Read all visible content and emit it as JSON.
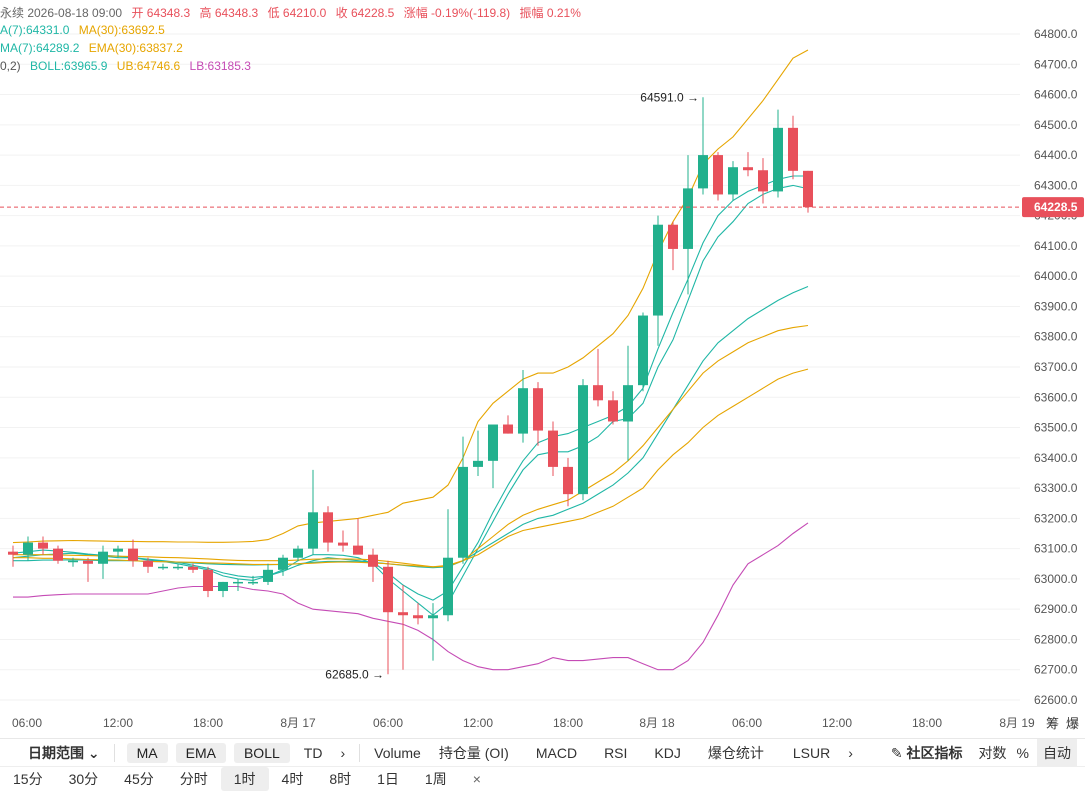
{
  "header": {
    "line1": [
      {
        "text": "永续 2026-08-18 09:00",
        "cls": "lg-title"
      },
      {
        "text": "开 64348.3",
        "cls": "up"
      },
      {
        "text": "高 64348.3",
        "cls": "up"
      },
      {
        "text": "低 64210.0",
        "cls": "up"
      },
      {
        "text": "收 64228.5",
        "cls": "up"
      },
      {
        "text": "涨幅 -0.19%(-119.8)",
        "cls": "up"
      },
      {
        "text": "振幅 0.21%",
        "cls": "up"
      }
    ],
    "line2": [
      {
        "text": "A(7):64331.0",
        "cls": "teal"
      },
      {
        "text": "MA(30):63692.5",
        "cls": "orange"
      }
    ],
    "line3": [
      {
        "text": "MA(7):64289.2",
        "cls": "teal"
      },
      {
        "text": "EMA(30):63837.2",
        "cls": "orange"
      }
    ],
    "line4": [
      {
        "text": "0,2)",
        "cls": "muted"
      },
      {
        "text": "BOLL:63965.9",
        "cls": "teal"
      },
      {
        "text": "UB:64746.6",
        "cls": "orange"
      },
      {
        "text": "LB:63185.3",
        "cls": "purple"
      }
    ]
  },
  "chart_data": {
    "type": "candlestick",
    "y_axis": {
      "min": 62600,
      "max": 64800,
      "ticks": [
        64800,
        64700,
        64600,
        64500,
        64400,
        64300,
        64200,
        64100,
        64000,
        63900,
        63800,
        63700,
        63600,
        63500,
        63400,
        63300,
        63200,
        63100,
        63000,
        62900,
        62800,
        62700,
        62600
      ],
      "position": "right"
    },
    "x_axis_labels": [
      "06:00",
      "12:00",
      "18:00",
      "8月 17",
      "06:00",
      "12:00",
      "18:00",
      "8月 18",
      "06:00",
      "12:00",
      "18:00",
      "8月 19"
    ],
    "last_price_label": "64228.5",
    "annotations": [
      {
        "text": "64591.0 →",
        "price": 64591.0,
        "type": "high"
      },
      {
        "text": "62685.0 →",
        "price": 62685.0,
        "type": "low"
      }
    ],
    "candles": [
      {
        "o": 63090,
        "h": 63110,
        "l": 63040,
        "c": 63080
      },
      {
        "o": 63080,
        "h": 63140,
        "l": 63060,
        "c": 63120
      },
      {
        "o": 63120,
        "h": 63140,
        "l": 63080,
        "c": 63100
      },
      {
        "o": 63100,
        "h": 63110,
        "l": 63050,
        "c": 63060
      },
      {
        "o": 63060,
        "h": 63070,
        "l": 63040,
        "c": 63060
      },
      {
        "o": 63060,
        "h": 63070,
        "l": 62990,
        "c": 63050
      },
      {
        "o": 63050,
        "h": 63110,
        "l": 63000,
        "c": 63090
      },
      {
        "o": 63090,
        "h": 63110,
        "l": 63070,
        "c": 63100
      },
      {
        "o": 63100,
        "h": 63130,
        "l": 63040,
        "c": 63060
      },
      {
        "o": 63060,
        "h": 63070,
        "l": 63020,
        "c": 63040
      },
      {
        "o": 63040,
        "h": 63050,
        "l": 63030,
        "c": 63040
      },
      {
        "o": 63040,
        "h": 63050,
        "l": 63030,
        "c": 63040
      },
      {
        "o": 63040,
        "h": 63050,
        "l": 63020,
        "c": 63030
      },
      {
        "o": 63030,
        "h": 63040,
        "l": 62940,
        "c": 62960
      },
      {
        "o": 62960,
        "h": 62990,
        "l": 62940,
        "c": 62990
      },
      {
        "o": 62990,
        "h": 63000,
        "l": 62960,
        "c": 62990
      },
      {
        "o": 62990,
        "h": 63010,
        "l": 62980,
        "c": 62990
      },
      {
        "o": 62990,
        "h": 63050,
        "l": 62980,
        "c": 63030
      },
      {
        "o": 63030,
        "h": 63080,
        "l": 63010,
        "c": 63070
      },
      {
        "o": 63070,
        "h": 63110,
        "l": 63060,
        "c": 63100
      },
      {
        "o": 63100,
        "h": 63360,
        "l": 63080,
        "c": 63220
      },
      {
        "o": 63220,
        "h": 63240,
        "l": 63090,
        "c": 63120
      },
      {
        "o": 63120,
        "h": 63160,
        "l": 63090,
        "c": 63110
      },
      {
        "o": 63110,
        "h": 63200,
        "l": 63090,
        "c": 63080
      },
      {
        "o": 63080,
        "h": 63100,
        "l": 62990,
        "c": 63040
      },
      {
        "o": 63040,
        "h": 63060,
        "l": 62685,
        "c": 62890
      },
      {
        "o": 62890,
        "h": 62980,
        "l": 62700,
        "c": 62880
      },
      {
        "o": 62880,
        "h": 62920,
        "l": 62850,
        "c": 62870
      },
      {
        "o": 62870,
        "h": 62920,
        "l": 62730,
        "c": 62880
      },
      {
        "o": 62880,
        "h": 63230,
        "l": 62860,
        "c": 63070
      },
      {
        "o": 63070,
        "h": 63470,
        "l": 63050,
        "c": 63370
      },
      {
        "o": 63370,
        "h": 63490,
        "l": 63340,
        "c": 63390
      },
      {
        "o": 63390,
        "h": 63500,
        "l": 63300,
        "c": 63510
      },
      {
        "o": 63510,
        "h": 63540,
        "l": 63480,
        "c": 63480
      },
      {
        "o": 63480,
        "h": 63690,
        "l": 63450,
        "c": 63630
      },
      {
        "o": 63630,
        "h": 63650,
        "l": 63440,
        "c": 63490
      },
      {
        "o": 63490,
        "h": 63520,
        "l": 63340,
        "c": 63370
      },
      {
        "o": 63370,
        "h": 63400,
        "l": 63240,
        "c": 63280
      },
      {
        "o": 63280,
        "h": 63660,
        "l": 63260,
        "c": 63640
      },
      {
        "o": 63640,
        "h": 63760,
        "l": 63570,
        "c": 63590
      },
      {
        "o": 63590,
        "h": 63620,
        "l": 63510,
        "c": 63520
      },
      {
        "o": 63520,
        "h": 63770,
        "l": 63390,
        "c": 63640
      },
      {
        "o": 63640,
        "h": 63880,
        "l": 63620,
        "c": 63870
      },
      {
        "o": 63870,
        "h": 64200,
        "l": 63770,
        "c": 64170
      },
      {
        "o": 64170,
        "h": 64180,
        "l": 64020,
        "c": 64090
      },
      {
        "o": 64090,
        "h": 64400,
        "l": 63940,
        "c": 64290
      },
      {
        "o": 64290,
        "h": 64591,
        "l": 64270,
        "c": 64400
      },
      {
        "o": 64400,
        "h": 64410,
        "l": 64250,
        "c": 64270
      },
      {
        "o": 64270,
        "h": 64380,
        "l": 64250,
        "c": 64360
      },
      {
        "o": 64360,
        "h": 64410,
        "l": 64330,
        "c": 64350
      },
      {
        "o": 64350,
        "h": 64390,
        "l": 64240,
        "c": 64280
      },
      {
        "o": 64280,
        "h": 64550,
        "l": 64260,
        "c": 64490
      },
      {
        "o": 64490,
        "h": 64530,
        "l": 64320,
        "c": 64348
      },
      {
        "o": 64348,
        "h": 64348,
        "l": 64210,
        "c": 64228
      }
    ],
    "series": [
      {
        "name": "MA(7)",
        "color": "#20b7a6",
        "values": [
          63085,
          63090,
          63095,
          63092,
          63088,
          63082,
          63078,
          63075,
          63070,
          63062,
          63058,
          63050,
          63040,
          63030,
          63010,
          63000,
          62995,
          63010,
          63030,
          63060,
          63080,
          63080,
          63078,
          63070,
          63050,
          63000,
          62960,
          62920,
          62880,
          62920,
          63010,
          63100,
          63190,
          63280,
          63360,
          63410,
          63420,
          63420,
          63440,
          63470,
          63520,
          63530,
          63580,
          63700,
          63790,
          63920,
          64050,
          64130,
          64180,
          64240,
          64270,
          64290,
          64300,
          64289
        ]
      },
      {
        "name": "MA(7) fast",
        "color": "#20b7a6",
        "values": [
          63070,
          63075,
          63080,
          63082,
          63085,
          63080,
          63075,
          63070,
          63070,
          63065,
          63060,
          63055,
          63045,
          63035,
          63020,
          63010,
          63005,
          63010,
          63025,
          63045,
          63060,
          63070,
          63065,
          63060,
          63055,
          63020,
          62980,
          62950,
          62930,
          62960,
          63040,
          63120,
          63220,
          63310,
          63390,
          63450,
          63470,
          63480,
          63500,
          63520,
          63540,
          63570,
          63630,
          63760,
          63880,
          63990,
          64110,
          64200,
          64250,
          64280,
          64300,
          64320,
          64331,
          64331
        ]
      },
      {
        "name": "BOLL",
        "color": "#20b7a6",
        "values": [
          63060,
          63060,
          63062,
          63062,
          63063,
          63062,
          63060,
          63060,
          63060,
          63058,
          63057,
          63055,
          63053,
          63050,
          63048,
          63047,
          63046,
          63047,
          63048,
          63050,
          63055,
          63058,
          63058,
          63057,
          63055,
          63050,
          63045,
          63040,
          63037,
          63040,
          63060,
          63090,
          63120,
          63150,
          63180,
          63200,
          63210,
          63230,
          63250,
          63280,
          63310,
          63350,
          63400,
          63480,
          63560,
          63640,
          63720,
          63780,
          63820,
          63860,
          63890,
          63920,
          63945,
          63966
        ]
      },
      {
        "name": "UB",
        "color": "#e6a500",
        "values": [
          63120,
          63122,
          63125,
          63126,
          63127,
          63126,
          63125,
          63124,
          63124,
          63123,
          63123,
          63122,
          63122,
          63121,
          63121,
          63122,
          63124,
          63130,
          63150,
          63175,
          63185,
          63190,
          63195,
          63200,
          63210,
          63220,
          63250,
          63260,
          63270,
          63310,
          63400,
          63520,
          63580,
          63620,
          63660,
          63680,
          63680,
          63700,
          63730,
          63770,
          63810,
          63870,
          63960,
          64080,
          64180,
          64260,
          64370,
          64420,
          64460,
          64520,
          64580,
          64650,
          64720,
          64747
        ]
      },
      {
        "name": "LB",
        "color": "#c54bb5",
        "values": [
          62940,
          62940,
          62945,
          62948,
          62950,
          62950,
          62950,
          62950,
          62950,
          62950,
          62960,
          62970,
          62975,
          62975,
          62975,
          62975,
          62965,
          62960,
          62950,
          62920,
          62900,
          62895,
          62890,
          62885,
          62870,
          62860,
          62850,
          62830,
          62800,
          62760,
          62730,
          62710,
          62700,
          62700,
          62710,
          62720,
          62740,
          62730,
          62730,
          62735,
          62740,
          62740,
          62720,
          62700,
          62700,
          62730,
          62790,
          62880,
          62980,
          63050,
          63080,
          63110,
          63150,
          63185
        ]
      },
      {
        "name": "MA(30)",
        "color": "#e6a500",
        "values": [
          63070,
          63070,
          63068,
          63068,
          63066,
          63064,
          63063,
          63062,
          63060,
          63058,
          63057,
          63056,
          63055,
          63053,
          63052,
          63050,
          63048,
          63048,
          63048,
          63050,
          63052,
          63055,
          63056,
          63055,
          63053,
          63050,
          63046,
          63043,
          63040,
          63045,
          63060,
          63080,
          63110,
          63140,
          63160,
          63170,
          63180,
          63190,
          63200,
          63220,
          63240,
          63270,
          63300,
          63360,
          63410,
          63450,
          63500,
          63540,
          63570,
          63600,
          63630,
          63660,
          63680,
          63693
        ]
      },
      {
        "name": "EMA(30)",
        "color": "#e6a500",
        "values": [
          63080,
          63080,
          63080,
          63079,
          63078,
          63077,
          63076,
          63075,
          63074,
          63073,
          63071,
          63070,
          63068,
          63066,
          63063,
          63061,
          63060,
          63060,
          63060,
          63062,
          63065,
          63066,
          63066,
          63065,
          63063,
          63058,
          63052,
          63046,
          63040,
          63042,
          63060,
          63100,
          63140,
          63180,
          63210,
          63230,
          63245,
          63260,
          63290,
          63320,
          63350,
          63390,
          63440,
          63500,
          63560,
          63620,
          63680,
          63720,
          63750,
          63780,
          63800,
          63820,
          63830,
          63837
        ]
      }
    ]
  },
  "toolbar": {
    "date_range": "日期范围",
    "pills": [
      "MA",
      "EMA",
      "BOLL"
    ],
    "td": "TD",
    "indicators": [
      "Volume",
      "持仓量 (OI)",
      "MACD",
      "RSI",
      "KDJ",
      "爆仓统计",
      "LSUR"
    ],
    "community": "社区指标",
    "log_scale": "对数",
    "percent": "%",
    "auto": "自动",
    "right_labels": [
      "筹",
      "爆"
    ]
  },
  "timeframes": {
    "items": [
      "15分",
      "30分",
      "45分",
      "分时",
      "1时",
      "4时",
      "8时",
      "1日",
      "1周"
    ],
    "active": "1时",
    "close": "×"
  },
  "colors": {
    "up": "#e8505b",
    "down": "#22b08d",
    "grid": "#f2f2f2",
    "price_line": "#e8505b"
  }
}
